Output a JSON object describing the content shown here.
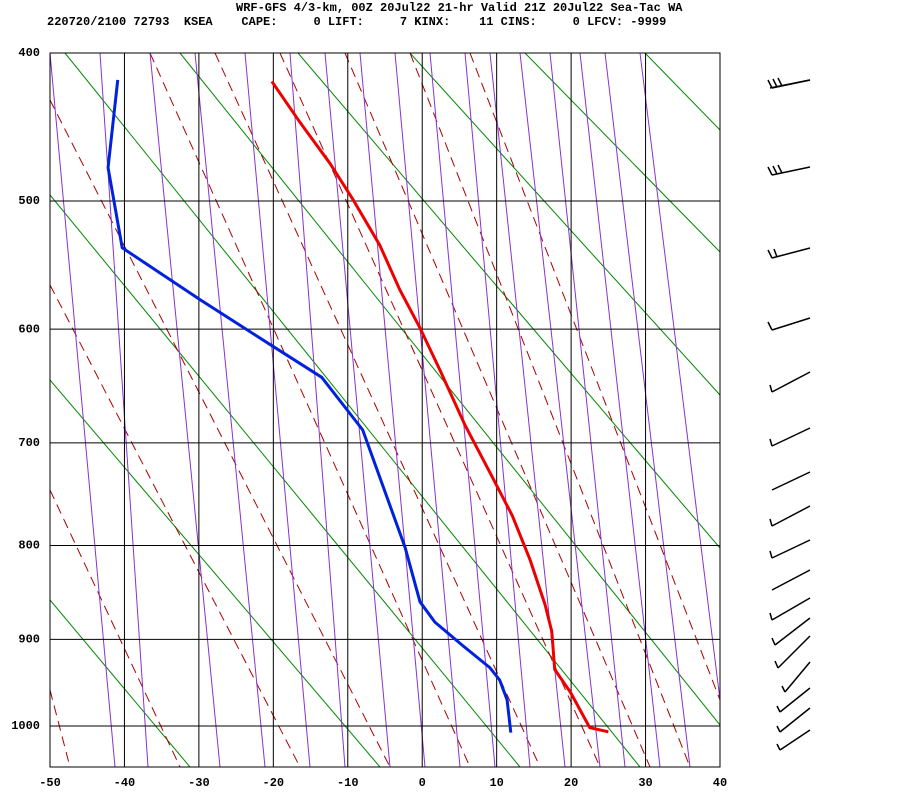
{
  "chart_data": {
    "type": "line",
    "title": "WRF-GFS 4/3-km, 00Z 20Jul22 21-hr Valid 21Z 20Jul22 Sea-Tac WA",
    "subtitle": "220720/2100 72793  KSEA    CAPE:     0 LIFT:     7 KINX:    11 CINS:     0 LFCV: -9999",
    "xlim": [
      -50,
      40
    ],
    "xticks": [
      -50,
      -40,
      -30,
      -20,
      -10,
      0,
      10,
      20,
      30,
      40
    ],
    "ylim": [
      400,
      1050
    ],
    "yticks": [
      400,
      500,
      600,
      700,
      800,
      900,
      1000
    ],
    "grid": true,
    "series": [
      {
        "color": "#ee0000",
        "x": [
          -20.2,
          -16.4,
          -12.4,
          -9.4,
          -5.7,
          -3.0,
          -0.3,
          2.4,
          5.7,
          9.1,
          12.1,
          14.5,
          16.5,
          17.4,
          17.8,
          19.9,
          22.5,
          25.0
        ],
        "values": [
          418,
          445,
          473,
          498,
          533,
          568,
          599,
          635,
          683,
          728,
          770,
          815,
          862,
          891,
          934,
          960,
          1002,
          1007
        ]
      },
      {
        "color": "#0022dd",
        "x": [
          -40.9,
          -42.2,
          -40.3,
          -29.8,
          -20.4,
          -13.5,
          -8.0,
          -2.3,
          -0.3,
          1.7,
          5.3,
          9.1,
          10.4,
          11.4,
          11.9
        ],
        "values": [
          417,
          476,
          535,
          576,
          613,
          641,
          688,
          802,
          859,
          881,
          906,
          932,
          946,
          969,
          1008
        ]
      }
    ]
  }
}
